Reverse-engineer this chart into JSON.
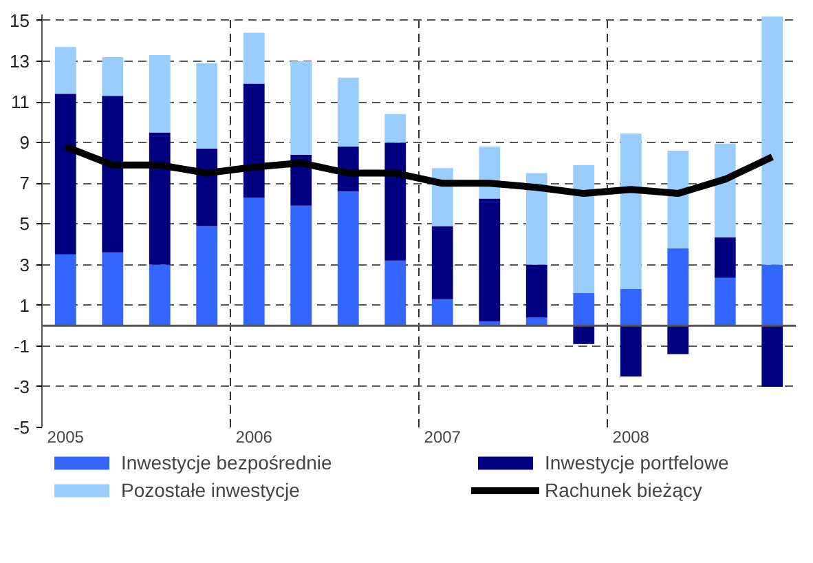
{
  "chart_data": {
    "type": "bar",
    "stacked": true,
    "categories": [
      "2005",
      null,
      null,
      null,
      "2006",
      null,
      null,
      null,
      "2007",
      null,
      null,
      null,
      "2008",
      null,
      null,
      null
    ],
    "series": [
      {
        "name": "Inwestycje bezpośrednie",
        "color": "#3366ff",
        "values": [
          3.5,
          3.6,
          3.0,
          4.9,
          6.3,
          5.9,
          6.6,
          3.2,
          1.3,
          0.2,
          0.4,
          1.6,
          1.8,
          3.8,
          2.35,
          3.0
        ]
      },
      {
        "name": "Inwestycje portfelowe",
        "color": "#000080",
        "values": [
          7.9,
          7.7,
          6.5,
          3.8,
          5.6,
          2.5,
          2.2,
          5.8,
          3.6,
          6.05,
          2.6,
          -0.9,
          -2.5,
          -1.4,
          2.0,
          -3.0
        ]
      },
      {
        "name": "Pozostałe inwestycje",
        "color": "#99ccff",
        "values": [
          2.3,
          1.9,
          3.8,
          4.2,
          2.5,
          4.6,
          3.4,
          1.4,
          2.85,
          2.55,
          4.5,
          6.3,
          7.65,
          4.8,
          4.6,
          12.2
        ]
      },
      {
        "name": "Rachunek bieżący",
        "type": "line",
        "color": "#000000",
        "values": [
          8.8,
          7.9,
          7.9,
          7.5,
          7.8,
          8.0,
          7.5,
          7.5,
          7.0,
          7.0,
          6.8,
          6.5,
          6.7,
          6.5,
          7.2,
          8.3
        ]
      }
    ],
    "ylim": [
      -5,
      15.3
    ],
    "yticks": [
      -5,
      -3,
      -1,
      1,
      3,
      5,
      7,
      9,
      11,
      13,
      15
    ],
    "grid": true,
    "legend": "bottom",
    "marker": "none",
    "line_style": "solid"
  }
}
